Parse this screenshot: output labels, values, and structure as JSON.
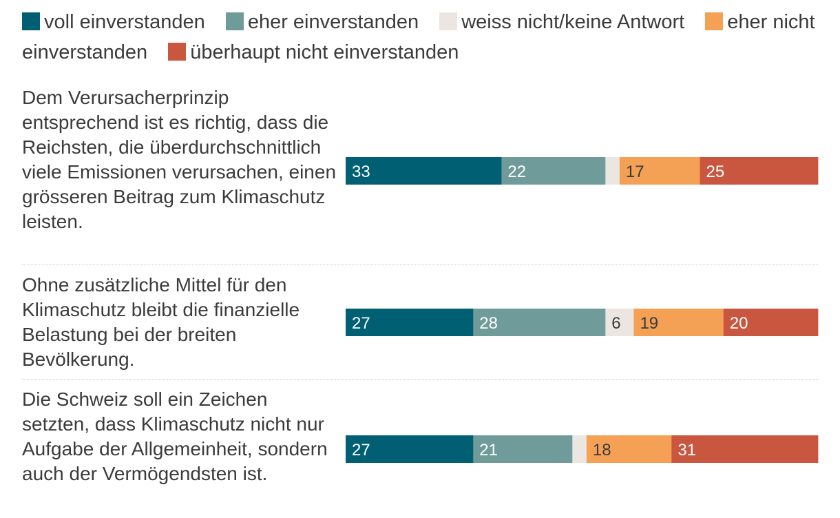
{
  "chart_data": {
    "type": "bar",
    "stacked": true,
    "orientation": "horizontal",
    "xlim": [
      0,
      100
    ],
    "legend": [
      {
        "name": "voll einverstanden",
        "color": "#005f73"
      },
      {
        "name": "eher einverstanden",
        "color": "#6f9b9a"
      },
      {
        "name": "weiss nicht/keine Antwort",
        "color": "#ebe6e2"
      },
      {
        "name": "eher nicht einverstanden",
        "color": "#f4a055"
      },
      {
        "name": "überhaupt nicht einverstanden",
        "color": "#c9563f"
      }
    ],
    "categories": [
      "Dem Verursacherprinzip entsprechend ist es richtig, dass die Reichsten, die überdurchschnittlich viele Emissionen verursachen, einen grösseren Beitrag zum Klimaschutz leisten.",
      "Ohne zusätzliche Mittel für den Klimaschutz bleibt die finanzielle Belastung bei der breiten Bevölkerung.",
      "Die Schweiz soll ein Zeichen setzten, dass Klimaschutz nicht nur Aufgabe der Allgemeinheit, sondern auch der Vermögendsten ist."
    ],
    "series": [
      {
        "name": "voll einverstanden",
        "values": [
          33,
          27,
          27
        ],
        "labels": [
          "33",
          "27",
          "27"
        ]
      },
      {
        "name": "eher einverstanden",
        "values": [
          22,
          28,
          21
        ],
        "labels": [
          "22",
          "28",
          "21"
        ]
      },
      {
        "name": "weiss nicht/keine Antwort",
        "values": [
          3,
          6,
          3
        ],
        "labels": [
          "",
          "6",
          ""
        ]
      },
      {
        "name": "eher nicht einverstanden",
        "values": [
          17,
          19,
          18
        ],
        "labels": [
          "17",
          "19",
          "18"
        ]
      },
      {
        "name": "überhaupt nicht einverstanden",
        "values": [
          25,
          20,
          31
        ],
        "labels": [
          "25",
          "20",
          "31"
        ]
      }
    ]
  }
}
